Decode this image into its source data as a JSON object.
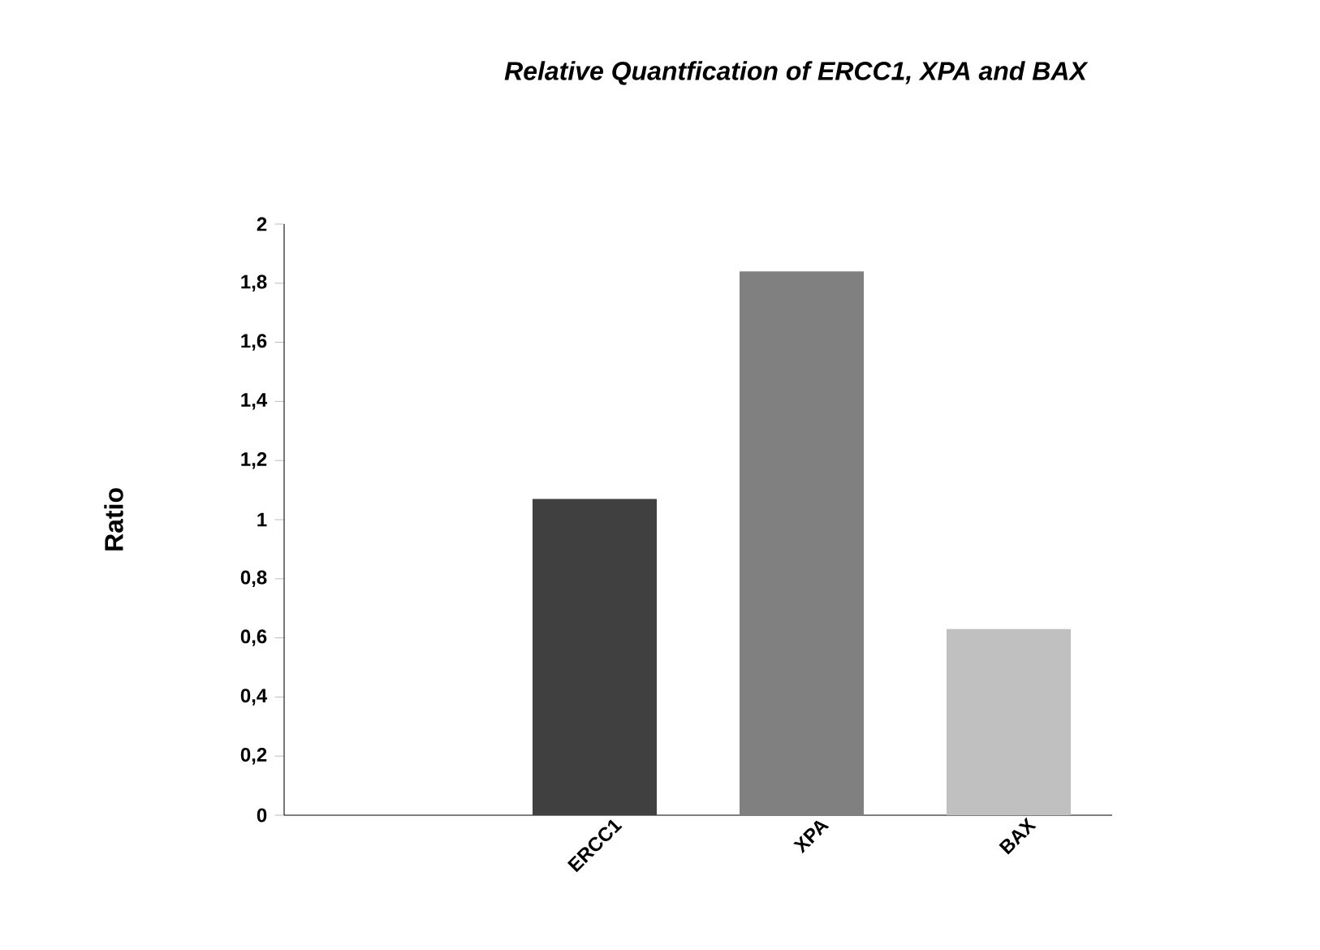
{
  "chart_data": {
    "type": "bar",
    "title": "Relative Quantfication  of ERCC1, XPA and BAX",
    "ylabel": "Ratio",
    "categories": [
      null,
      "ERCC1",
      "XPA",
      "BAX"
    ],
    "values": [
      null,
      1.07,
      1.84,
      0.63
    ],
    "colors": [
      "#404040",
      "#404040",
      "#808080",
      "#c0c0c0"
    ],
    "ylim": [
      0,
      2
    ],
    "yticks": [
      0,
      {
        "value": 0.2,
        "label": "0,2"
      },
      {
        "value": 0.4,
        "label": "0,4"
      },
      {
        "value": 0.6,
        "label": "0,6"
      },
      {
        "value": 0.8,
        "label": "0,8"
      },
      1,
      {
        "value": 1.2,
        "label": "1,2"
      },
      {
        "value": 1.4,
        "label": "1,4"
      },
      {
        "value": 1.6,
        "label": "1,6"
      },
      {
        "value": 1.8,
        "label": "1,8"
      },
      2
    ],
    "grid": false
  }
}
